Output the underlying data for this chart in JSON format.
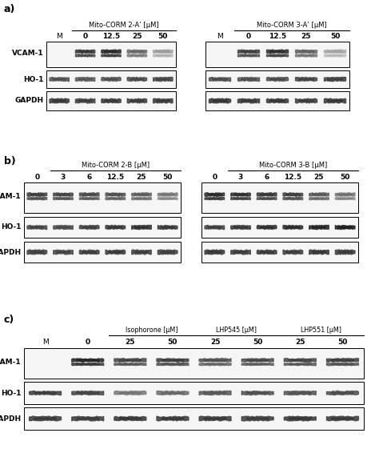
{
  "panel_a": {
    "label": "a)",
    "left_group": {
      "title": "Mito-CORM 2-A’ [μM]",
      "lanes": [
        "M",
        "0",
        "12.5",
        "25",
        "50"
      ],
      "vcam1": [
        null,
        0.25,
        0.2,
        0.45,
        0.65
      ],
      "ho1": [
        0.35,
        0.38,
        0.35,
        0.32,
        0.3
      ],
      "gapdh": [
        0.25,
        0.28,
        0.26,
        0.27,
        0.26
      ]
    },
    "right_group": {
      "title": "Mito-CORM 3-A’ [μM]",
      "lanes": [
        "M",
        "0",
        "12.5",
        "25",
        "50"
      ],
      "vcam1": [
        null,
        0.28,
        0.22,
        0.42,
        0.68
      ],
      "ho1": [
        0.33,
        0.35,
        0.33,
        0.3,
        0.28
      ],
      "gapdh": [
        0.24,
        0.26,
        0.25,
        0.27,
        0.25
      ]
    }
  },
  "panel_b": {
    "label": "b)",
    "left_group": {
      "title": "Mito-CORM 2-B [μM]",
      "lanes": [
        "0",
        "3",
        "6",
        "12.5",
        "25",
        "50"
      ],
      "vcam1": [
        0.28,
        0.3,
        0.32,
        0.35,
        0.4,
        0.5
      ],
      "ho1": [
        0.3,
        0.32,
        0.28,
        0.25,
        0.22,
        0.25
      ],
      "gapdh": [
        0.28,
        0.3,
        0.27,
        0.26,
        0.27,
        0.28
      ]
    },
    "right_group": {
      "title": "Mito-CORM 3-B [μM]",
      "lanes": [
        "0",
        "3",
        "6",
        "12.5",
        "25",
        "50"
      ],
      "vcam1": [
        0.2,
        0.22,
        0.25,
        0.28,
        0.38,
        0.48
      ],
      "ho1": [
        0.28,
        0.25,
        0.22,
        0.2,
        0.18,
        0.15
      ],
      "gapdh": [
        0.25,
        0.27,
        0.26,
        0.27,
        0.25,
        0.26
      ]
    }
  },
  "panel_c": {
    "label": "c)",
    "lanes": [
      "M",
      "0",
      "25",
      "50",
      "25",
      "50",
      "25",
      "50"
    ],
    "bracket_labels": [
      "Isophorone [μM]",
      "LHP545 [μM]",
      "LHP551 [μM]"
    ],
    "bracket_lane_starts": [
      2,
      4,
      6
    ],
    "vcam1": [
      null,
      0.18,
      0.3,
      0.28,
      0.35,
      0.32,
      0.3,
      0.28
    ],
    "ho1": [
      0.28,
      0.3,
      0.5,
      0.45,
      0.38,
      0.35,
      0.36,
      0.34
    ],
    "gapdh": [
      0.26,
      0.27,
      0.25,
      0.26,
      0.26,
      0.27,
      0.25,
      0.26
    ]
  },
  "row_labels": [
    "VCAM-1",
    "HO-1",
    "GAPDH"
  ],
  "bg_gel": "#f5f5f5",
  "bg_page": "#ffffff"
}
